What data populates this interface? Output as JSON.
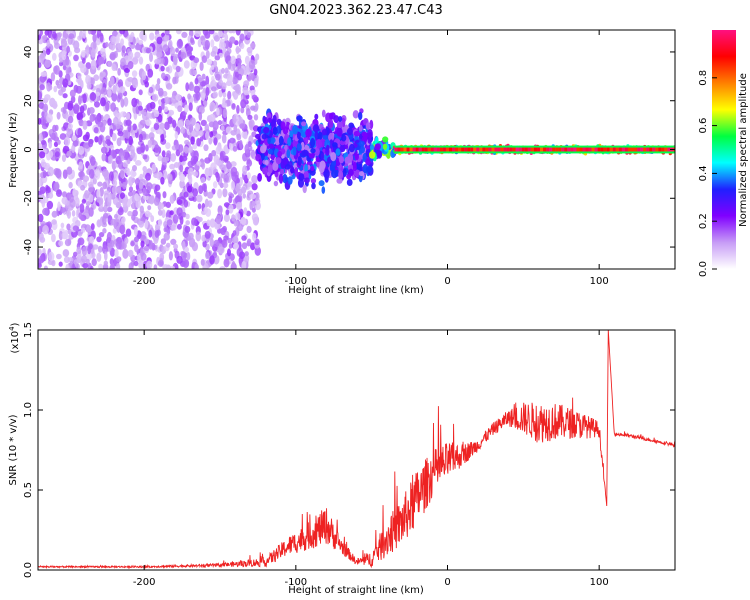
{
  "title": "GN04.2023.362.23.47.C43",
  "chart_data": [
    {
      "type": "heatmap",
      "xlabel": "Height of straight line (km)",
      "ylabel": "Frequency (Hz)",
      "xlim": [
        -270,
        150
      ],
      "ylim": [
        -49,
        49
      ],
      "x_ticks": [
        -200,
        -100,
        0,
        100
      ],
      "x_tick_labels": [
        "-200",
        "-100",
        "0",
        "100"
      ],
      "y_ticks": [
        40,
        20,
        0,
        -20,
        -40
      ],
      "y_tick_labels": [
        "40",
        "20",
        "0",
        "-20",
        "-40"
      ],
      "colorbar": {
        "label": "Normalized spectral amplitude",
        "range": [
          0,
          1
        ],
        "ticks": [
          0.0,
          0.2,
          0.4,
          0.6,
          0.8
        ],
        "tick_labels": [
          "0.0",
          "0.2",
          "0.4",
          "0.6",
          "0.8"
        ],
        "colors": [
          "#ffffff",
          "#c79cf6",
          "#8000ff",
          "#2020ff",
          "#00ffff",
          "#00ff40",
          "#ffff00",
          "#ff8000",
          "#ff0000",
          "#ff1080"
        ]
      },
      "regions": [
        {
          "x": [
            -270,
            -125
          ],
          "freq_band": [
            -49,
            49
          ],
          "amplitude": 0.15
        },
        {
          "x": [
            -125,
            -50
          ],
          "freq_band": [
            -18,
            18
          ],
          "amplitude": 0.3
        },
        {
          "x": [
            -50,
            -35
          ],
          "freq_band": [
            -5,
            5
          ],
          "amplitude": 0.5
        },
        {
          "x": [
            -35,
            150
          ],
          "freq_band": [
            -2,
            2
          ],
          "amplitude": 0.85
        }
      ],
      "grid": false
    },
    {
      "type": "line",
      "xlabel": "Height of straight line (km)",
      "ylabel": "SNR (10 * v/v)",
      "y_multiplier_label": "(x10",
      "y_multiplier_exp": "4",
      "y_multiplier_close": ")",
      "xlim": [
        -270,
        150
      ],
      "ylim": [
        0,
        1.5
      ],
      "x_ticks": [
        -200,
        -100,
        0,
        100
      ],
      "x_tick_labels": [
        "-200",
        "-100",
        "0",
        "100"
      ],
      "y_ticks": [
        0,
        0.5,
        1.0,
        1.5
      ],
      "y_tick_labels": [
        "0.0",
        "0.5",
        "1.0",
        "1.5"
      ],
      "color": "#ee2222",
      "series": [
        {
          "x": [
            -270,
            -200,
            -150,
            -120,
            -105,
            -90,
            -80,
            -70,
            -60,
            -50,
            -40,
            -30,
            -20,
            -10,
            0,
            10,
            20,
            30,
            40,
            50,
            60,
            70,
            80,
            90,
            100,
            105,
            106,
            110,
            120,
            130,
            150
          ],
          "y": [
            0.02,
            0.02,
            0.03,
            0.05,
            0.15,
            0.22,
            0.28,
            0.15,
            0.05,
            0.07,
            0.2,
            0.3,
            0.45,
            0.6,
            0.68,
            0.72,
            0.78,
            0.88,
            0.95,
            0.95,
            0.92,
            0.93,
            0.92,
            0.9,
            0.88,
            0.4,
            1.5,
            0.85,
            0.84,
            0.82,
            0.78
          ],
          "noise": [
            0.005,
            0.005,
            0.01,
            0.03,
            0.06,
            0.09,
            0.12,
            0.05,
            0.02,
            0.05,
            0.12,
            0.15,
            0.18,
            0.15,
            0.12,
            0.07,
            0.04,
            0.04,
            0.05,
            0.1,
            0.13,
            0.12,
            0.1,
            0.08,
            0.05,
            0.0,
            0.0,
            0.01,
            0.01,
            0.01,
            0.01
          ]
        }
      ]
    }
  ]
}
